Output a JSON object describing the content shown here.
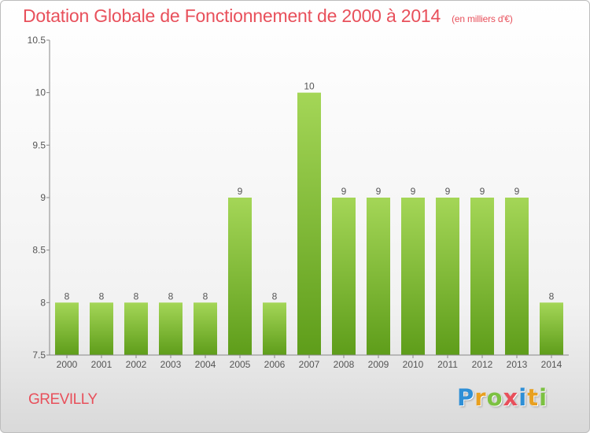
{
  "header": {
    "title": "Dotation Globale de Fonctionnement de 2000 à 2014",
    "unit": "(en milliers d'€)"
  },
  "commune": "GREVILLY",
  "logo": {
    "letters": [
      "P",
      "r",
      "o",
      "x",
      "i",
      "t",
      "i"
    ],
    "colors": [
      "#2e8fd6",
      "#e8a020",
      "#7cc142",
      "#e8505b",
      "#2e8fd6",
      "#e8a020",
      "#7cc142"
    ]
  },
  "colors": {
    "bar_light": "#a4d657",
    "bar_dark": "#5e9d1a",
    "title": "#e8505b"
  },
  "chart_data": {
    "type": "bar",
    "categories": [
      "2000",
      "2001",
      "2002",
      "2003",
      "2004",
      "2005",
      "2006",
      "2007",
      "2008",
      "2009",
      "2010",
      "2011",
      "2012",
      "2013",
      "2014"
    ],
    "values": [
      8,
      8,
      8,
      8,
      8,
      9,
      8,
      10,
      9,
      9,
      9,
      9,
      9,
      9,
      8
    ],
    "data_labels": [
      "8",
      "8",
      "8",
      "8",
      "8",
      "9",
      "8",
      "10",
      "9",
      "9",
      "9",
      "9",
      "9",
      "9",
      "8"
    ],
    "yticks": [
      "7.5",
      "8",
      "8.5",
      "9",
      "9.5",
      "10",
      "10.5"
    ],
    "ylim": [
      7.5,
      10.5
    ],
    "title": "Dotation Globale de Fonctionnement de 2000 à 2014",
    "xlabel": "",
    "ylabel": "",
    "grid": false
  }
}
